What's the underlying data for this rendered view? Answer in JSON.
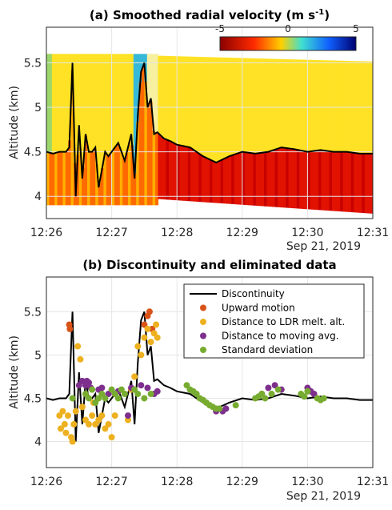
{
  "chart_data": [
    {
      "type": "heatmap",
      "title": "(a) Smoothed radial velocity (m s",
      "title_sup": "-1",
      "title_end": ")",
      "ylabel": "Altitude (km)",
      "xlabel_date": "Sep 21, 2019",
      "xticks": [
        "12:26",
        "12:27",
        "12:28",
        "12:29",
        "12:30",
        "12:31"
      ],
      "yticks": [
        "4",
        "4.5",
        "5",
        "5.5"
      ],
      "xlim": [
        0,
        5
      ],
      "ylim": [
        3.75,
        5.9
      ],
      "grid": true,
      "colormap": "red-yellow-cyan-blue",
      "colorbar": {
        "ticks": [
          "-5",
          "0",
          "5"
        ],
        "range": [
          -5,
          5
        ],
        "position": "inside-top-right"
      },
      "discontinuity_line": {
        "color": "#000000",
        "x": [
          0.0,
          0.1,
          0.2,
          0.3,
          0.35,
          0.4,
          0.45,
          0.5,
          0.55,
          0.6,
          0.65,
          0.7,
          0.75,
          0.8,
          0.85,
          0.9,
          0.95,
          1.0,
          1.1,
          1.2,
          1.3,
          1.35,
          1.4,
          1.45,
          1.5,
          1.55,
          1.6,
          1.65,
          1.7,
          1.8,
          1.9,
          2.0,
          2.2,
          2.4,
          2.6,
          2.8,
          3.0,
          3.2,
          3.4,
          3.6,
          3.8,
          4.0,
          4.2,
          4.4,
          4.6,
          4.8,
          5.0
        ],
        "y": [
          4.5,
          4.48,
          4.5,
          4.5,
          4.55,
          5.5,
          4.0,
          4.8,
          4.2,
          4.7,
          4.5,
          4.5,
          4.55,
          4.1,
          4.3,
          4.5,
          4.45,
          4.5,
          4.6,
          4.4,
          4.7,
          4.2,
          4.9,
          5.4,
          5.5,
          5.0,
          5.1,
          4.7,
          4.72,
          4.65,
          4.62,
          4.58,
          4.55,
          4.45,
          4.38,
          4.45,
          4.5,
          4.48,
          4.5,
          4.55,
          4.53,
          4.5,
          4.52,
          4.5,
          4.5,
          4.48,
          4.48
        ]
      }
    },
    {
      "type": "scatter",
      "title": "(b) Discontinuity and eliminated data",
      "ylabel": "Altitude (km)",
      "xlabel_date": "Sep 21, 2019",
      "xticks": [
        "12:26",
        "12:27",
        "12:28",
        "12:29",
        "12:30",
        "12:31"
      ],
      "yticks": [
        "4",
        "4.5",
        "5",
        "5.5"
      ],
      "xlim": [
        0,
        5
      ],
      "ylim": [
        3.7,
        5.9
      ],
      "grid": true,
      "legend_position": "top-right",
      "series": [
        {
          "name": "Discontinuity",
          "kind": "line",
          "color": "#000000",
          "x": [
            0.0,
            0.1,
            0.2,
            0.3,
            0.35,
            0.4,
            0.45,
            0.5,
            0.55,
            0.6,
            0.65,
            0.7,
            0.75,
            0.8,
            0.85,
            0.9,
            0.95,
            1.0,
            1.1,
            1.2,
            1.3,
            1.35,
            1.4,
            1.45,
            1.5,
            1.55,
            1.6,
            1.65,
            1.7,
            1.8,
            1.9,
            2.0,
            2.2,
            2.4,
            2.6,
            2.8,
            3.0,
            3.2,
            3.4,
            3.6,
            3.8,
            4.0,
            4.2,
            4.4,
            4.6,
            4.8,
            5.0
          ],
          "y": [
            4.5,
            4.48,
            4.5,
            4.5,
            4.55,
            5.5,
            4.0,
            4.8,
            4.2,
            4.7,
            4.5,
            4.5,
            4.55,
            4.1,
            4.3,
            4.5,
            4.45,
            4.5,
            4.6,
            4.4,
            4.7,
            4.2,
            4.9,
            5.4,
            5.5,
            5.0,
            5.1,
            4.7,
            4.72,
            4.65,
            4.62,
            4.58,
            4.55,
            4.45,
            4.38,
            4.45,
            4.5,
            4.48,
            4.5,
            4.55,
            4.53,
            4.5,
            4.52,
            4.5,
            4.5,
            4.48,
            4.48
          ]
        },
        {
          "name": "Upward motion",
          "kind": "points",
          "color": "#d95319",
          "x": [
            0.35,
            0.36,
            1.5,
            1.55,
            1.58,
            1.62
          ],
          "y": [
            5.35,
            5.3,
            5.35,
            5.45,
            5.5,
            5.3
          ]
        },
        {
          "name": "Distance to LDR melt. alt.",
          "kind": "points",
          "color": "#edb120",
          "x": [
            0.2,
            0.22,
            0.25,
            0.28,
            0.3,
            0.33,
            0.38,
            0.4,
            0.42,
            0.45,
            0.48,
            0.52,
            0.55,
            0.6,
            0.65,
            0.7,
            0.72,
            0.75,
            0.8,
            0.85,
            0.9,
            0.95,
            1.0,
            1.05,
            1.25,
            1.3,
            1.35,
            1.4,
            1.45,
            1.5,
            1.55,
            1.6,
            1.65,
            1.68,
            1.7
          ],
          "y": [
            4.3,
            4.15,
            4.35,
            4.2,
            4.1,
            4.3,
            4.05,
            4.0,
            4.2,
            4.35,
            5.1,
            4.95,
            4.4,
            4.25,
            4.2,
            4.3,
            4.45,
            4.2,
            4.25,
            4.3,
            4.15,
            4.2,
            4.05,
            4.3,
            4.25,
            4.6,
            4.75,
            5.1,
            5.0,
            5.2,
            5.3,
            5.15,
            5.25,
            5.35,
            5.2
          ]
        },
        {
          "name": "Distance to moving avg.",
          "kind": "points",
          "color": "#7e2f8e",
          "x": [
            0.5,
            0.55,
            0.6,
            0.62,
            0.65,
            0.68,
            0.8,
            0.85,
            0.95,
            1.05,
            1.1,
            1.25,
            1.3,
            1.45,
            1.55,
            1.65,
            1.7,
            2.6,
            2.7,
            2.75,
            3.3,
            3.4,
            3.5,
            3.6,
            4.0,
            4.05,
            4.1
          ],
          "y": [
            4.65,
            4.7,
            4.65,
            4.7,
            4.68,
            4.62,
            4.6,
            4.62,
            4.55,
            4.55,
            4.58,
            4.3,
            4.62,
            4.65,
            4.62,
            4.55,
            4.58,
            4.35,
            4.35,
            4.38,
            4.55,
            4.62,
            4.65,
            4.6,
            4.62,
            4.58,
            4.55
          ]
        },
        {
          "name": "Standard deviation",
          "kind": "points",
          "color": "#77ac30",
          "x": [
            0.4,
            0.6,
            0.65,
            0.7,
            0.75,
            0.8,
            0.85,
            0.9,
            1.0,
            1.05,
            1.1,
            1.15,
            1.2,
            1.35,
            1.4,
            1.5,
            1.6,
            2.15,
            2.2,
            2.25,
            2.3,
            2.35,
            2.4,
            2.45,
            2.5,
            2.55,
            2.6,
            2.65,
            2.9,
            3.2,
            3.25,
            3.3,
            3.35,
            3.45,
            3.55,
            3.9,
            3.95,
            4.0,
            4.15,
            4.2,
            4.25
          ],
          "y": [
            4.5,
            4.55,
            4.5,
            4.6,
            4.45,
            4.5,
            4.55,
            4.5,
            4.6,
            4.55,
            4.5,
            4.6,
            4.55,
            4.6,
            4.55,
            4.5,
            4.55,
            4.65,
            4.6,
            4.58,
            4.55,
            4.5,
            4.48,
            4.45,
            4.42,
            4.4,
            4.38,
            4.38,
            4.42,
            4.5,
            4.52,
            4.55,
            4.5,
            4.55,
            4.6,
            4.55,
            4.52,
            4.58,
            4.5,
            4.48,
            4.5
          ]
        }
      ]
    }
  ]
}
